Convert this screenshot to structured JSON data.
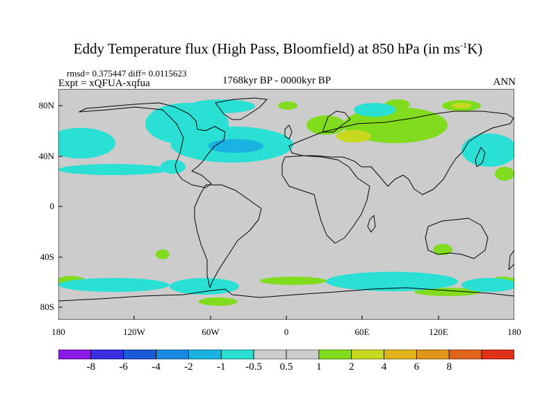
{
  "title_parts": {
    "main": "Eddy Temperature flux (High Pass, Bloomfield) at 850 hPa (in ms",
    "sup": "-1",
    "tail": "K)"
  },
  "stats": "rmsd= 0.375447  diff= 0.0115623",
  "expt": "Expt = xQFUA-xqfua",
  "period": "1768kyr BP - 0000kyr BP",
  "season": "ANN",
  "lat_labels": [
    "80N",
    "40N",
    "0",
    "40S",
    "80S"
  ],
  "lon_labels": [
    "180",
    "120W",
    "60W",
    "0",
    "60E",
    "120E",
    "180"
  ],
  "colorbar": {
    "colors": [
      "#8a1ae6",
      "#3a2ee0",
      "#1a5ad8",
      "#1a88de",
      "#1ab2e0",
      "#2ae0d4",
      "#cccccc",
      "#cccccc",
      "#82dc1e",
      "#c8d81e",
      "#e0b41a",
      "#e0961a",
      "#e0641a",
      "#e0321a"
    ],
    "labels": [
      "-8",
      "-6",
      "-4",
      "-2",
      "-1",
      "-0.5",
      "0.5",
      "1",
      "2",
      "4",
      "6",
      "8"
    ]
  }
}
